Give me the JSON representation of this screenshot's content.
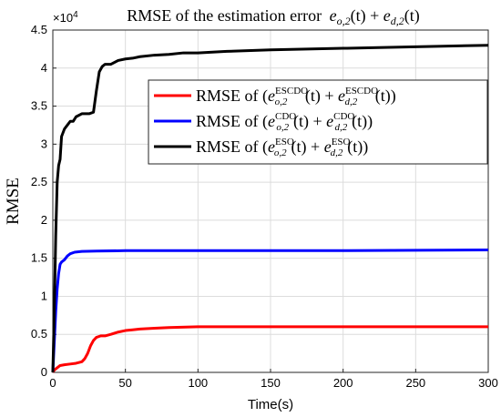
{
  "chart_data": {
    "type": "line",
    "title": "RMSE of the estimation error e_{o,2}(t) + e_{d,2}(t)",
    "title_parts": {
      "prefix": "RMSE of the estimation error",
      "e1": "e",
      "e1_sub": "o,2",
      "t1": "(t) + ",
      "e2": "e",
      "e2_sub": "d,2",
      "t2": "(t)"
    },
    "xlabel": "Time(s)",
    "ylabel": "RMSE",
    "y_multiplier": "×10",
    "y_multiplier_exp": "4",
    "xlim": [
      0,
      300
    ],
    "ylim": [
      0,
      4.5
    ],
    "xticks": [
      "0",
      "50",
      "100",
      "150",
      "200",
      "250",
      "300"
    ],
    "yticks": [
      "0",
      "0.5",
      "1",
      "1.5",
      "2",
      "2.5",
      "3",
      "3.5",
      "4",
      "4.5"
    ],
    "grid": true,
    "legend_position": "upper-right",
    "series": [
      {
        "name": "RMSE of (e_{o,2}^{ESCDO}(t) + e_{d,2}^{ESCDO}(t))",
        "legend_prefix": "RMSE of (",
        "tag": "ESCDO",
        "color": "#ff0000",
        "x": [
          0,
          1,
          3,
          5,
          8,
          12,
          16,
          20,
          22,
          24,
          26,
          28,
          30,
          33,
          36,
          40,
          45,
          50,
          55,
          60,
          70,
          80,
          100,
          150,
          200,
          250,
          300
        ],
        "y": [
          0,
          0.03,
          0.06,
          0.09,
          0.1,
          0.11,
          0.12,
          0.14,
          0.18,
          0.25,
          0.35,
          0.42,
          0.46,
          0.48,
          0.48,
          0.5,
          0.53,
          0.55,
          0.56,
          0.57,
          0.58,
          0.59,
          0.6,
          0.6,
          0.6,
          0.6,
          0.6
        ]
      },
      {
        "name": "RMSE of (e_{o,2}^{CDO}(t) + e_{d,2}^{CDO}(t))",
        "legend_prefix": "RMSE of (",
        "tag": "CDO",
        "color": "#0000ff",
        "x": [
          0,
          1,
          2,
          3,
          4,
          5,
          6,
          8,
          10,
          12,
          15,
          20,
          30,
          50,
          100,
          150,
          200,
          250,
          300
        ],
        "y": [
          0,
          0.4,
          0.8,
          1.1,
          1.3,
          1.42,
          1.45,
          1.48,
          1.53,
          1.56,
          1.58,
          1.59,
          1.595,
          1.6,
          1.6,
          1.6,
          1.6,
          1.605,
          1.61
        ]
      },
      {
        "name": "RMSE of (e_{o,2}^{ESO}(t) + e_{d,2}^{ESO}(t))",
        "legend_prefix": "RMSE of (",
        "tag": "ESO",
        "color": "#000000",
        "x": [
          0,
          1,
          2,
          3,
          4,
          5,
          6,
          8,
          10,
          12,
          14,
          16,
          20,
          25,
          28,
          30,
          32,
          34,
          36,
          40,
          45,
          50,
          55,
          60,
          70,
          80,
          90,
          100,
          120,
          150,
          200,
          250,
          300
        ],
        "y": [
          0,
          0.8,
          1.8,
          2.5,
          2.72,
          2.8,
          3.1,
          3.2,
          3.25,
          3.3,
          3.3,
          3.36,
          3.4,
          3.4,
          3.42,
          3.7,
          3.95,
          4.02,
          4.05,
          4.05,
          4.1,
          4.12,
          4.13,
          4.15,
          4.17,
          4.18,
          4.2,
          4.2,
          4.22,
          4.24,
          4.26,
          4.28,
          4.3
        ]
      }
    ]
  }
}
